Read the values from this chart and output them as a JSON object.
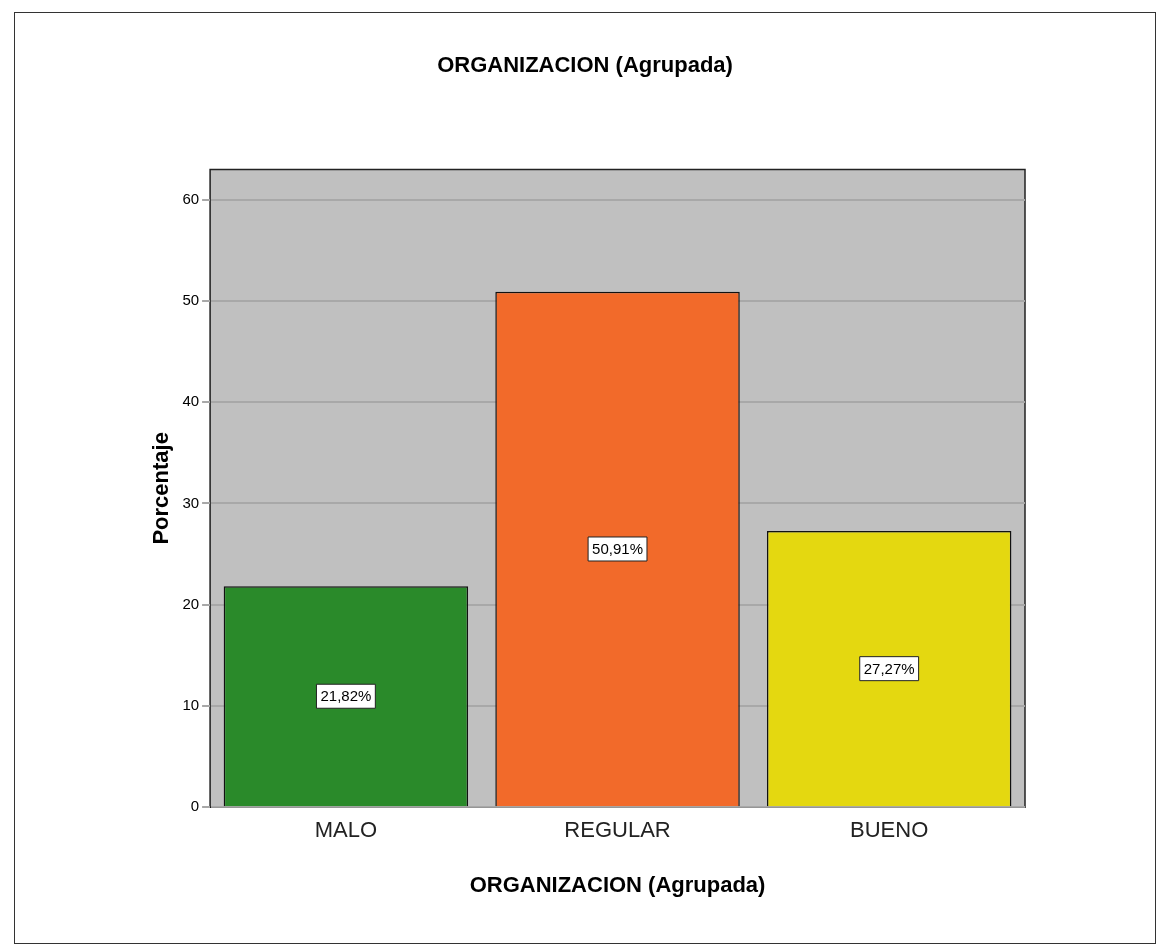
{
  "chart_data": {
    "type": "bar",
    "title": "ORGANIZACION (Agrupada)",
    "xlabel": "ORGANIZACION (Agrupada)",
    "ylabel": "Porcentaje",
    "categories": [
      "MALO",
      "REGULAR",
      "BUENO"
    ],
    "values": [
      21.82,
      50.91,
      27.27
    ],
    "colors": [
      "#2a8a2a",
      "#f26a2a",
      "#e4d810"
    ],
    "value_labels": [
      "21,82%",
      "50,91%",
      "27,27%"
    ],
    "ylim": [
      0,
      63
    ],
    "yticks": [
      0,
      10,
      20,
      30,
      40,
      50,
      60
    ],
    "grid": "y",
    "legend": false
  }
}
